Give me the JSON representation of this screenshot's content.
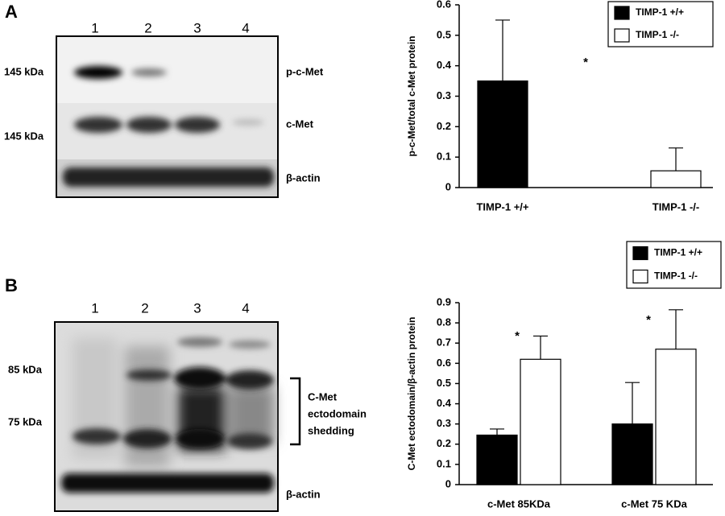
{
  "blots": [
    {
      "label": "A",
      "lanes": [
        "1",
        "2",
        "3",
        "4"
      ],
      "markers": [
        "145 kDa",
        "145 kDa"
      ],
      "proteins": [
        "p-c-Met",
        "c-Met",
        "β-actin"
      ]
    },
    {
      "label": "B",
      "lanes": [
        "1",
        "2",
        "3",
        "4"
      ],
      "markers": [
        "85 kDa",
        "75 kDa"
      ],
      "bracket": [
        "C-Met",
        "ectodomain",
        "shedding"
      ],
      "proteins": [
        "β-actin"
      ]
    }
  ],
  "chart_data": [
    {
      "type": "bar",
      "y_label": "p-c-Met/total c-Met protein",
      "categories": [
        "TIMP-1 +/+",
        "TIMP-1 -/-"
      ],
      "series": [
        {
          "name": "TIMP-1 +/+",
          "color": "#000000",
          "values": [
            0.35,
            null
          ],
          "errors": [
            0.2,
            null
          ]
        },
        {
          "name": "TIMP-1 -/-",
          "color": "#ffffff",
          "values": [
            null,
            0.055
          ],
          "errors": [
            null,
            0.075
          ]
        }
      ],
      "ylim": [
        0,
        0.6
      ],
      "yticks": [
        0,
        0.1,
        0.2,
        0.3,
        0.4,
        0.5,
        0.6
      ],
      "legend": "upper right",
      "annotations": [
        "*"
      ]
    },
    {
      "type": "bar",
      "y_label": "C-Met ectodomain/β-actin protein",
      "categories": [
        "c-Met 85KDa",
        "c-Met 75 KDa"
      ],
      "series": [
        {
          "name": "TIMP-1 +/+",
          "color": "#000000",
          "values": [
            0.245,
            0.3
          ],
          "errors": [
            0.03,
            0.205
          ]
        },
        {
          "name": "TIMP-1 -/-",
          "color": "#ffffff",
          "values": [
            0.62,
            0.67
          ],
          "errors": [
            0.115,
            0.195
          ]
        }
      ],
      "ylim": [
        0,
        0.9
      ],
      "yticks": [
        0,
        0.1,
        0.2,
        0.3,
        0.4,
        0.5,
        0.6,
        0.7,
        0.8,
        0.9
      ],
      "legend": "upper right",
      "annotations": [
        "*",
        "*"
      ]
    }
  ]
}
